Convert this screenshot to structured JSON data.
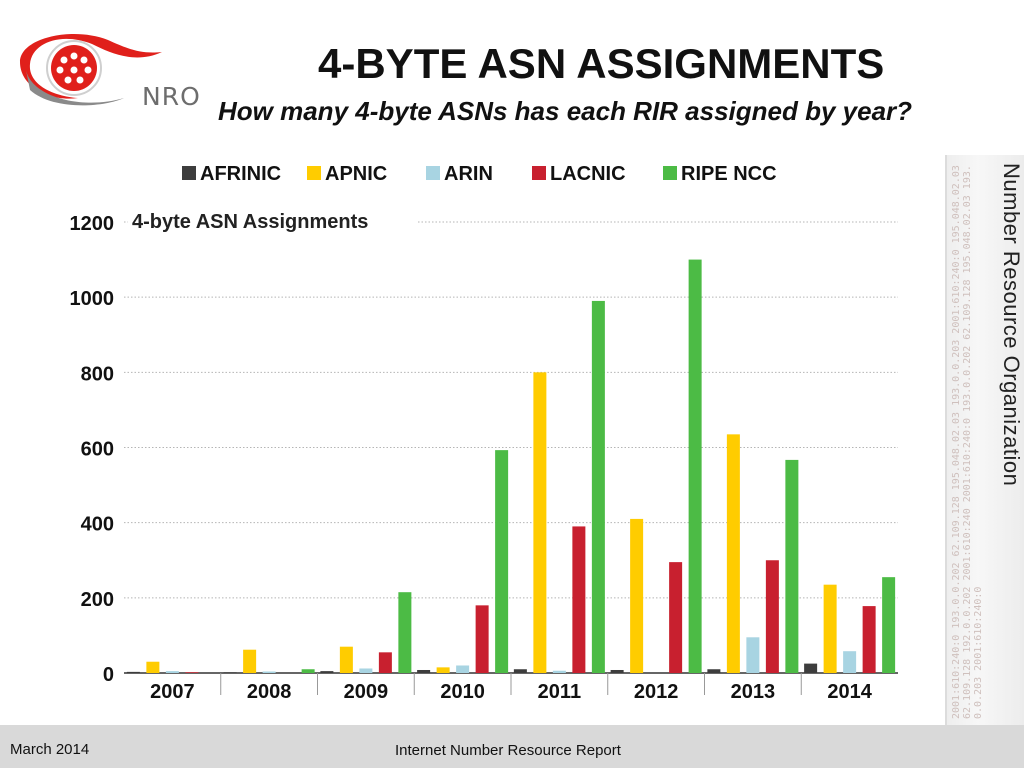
{
  "header": {
    "logo_text": "NRO",
    "title": "4-BYTE ASN ASSIGNMENTS",
    "subtitle": "How many 4-byte ASNs has each RIR assigned by year?"
  },
  "sidebar": {
    "org_name": "Number Resource Organization",
    "ip_text": "2001:610:240:0 193.0.0.202 62.109.128 195.048.02.03 193.0.0.203 2001:610:240:0 195.048.02.03 62.109.128 192.0.0.202 2001:610:240 2001:610:240:0 193.0.0.202 62.109.128 195.048.02.03 193.0.0.203 2001:610:240:0"
  },
  "footer": {
    "date": "March 2014",
    "report": "Internet Number Resource Report"
  },
  "colors": {
    "AFRINIC": "#3d3d3d",
    "APNIC": "#ffcc00",
    "ARIN": "#a8d4e2",
    "LACNIC": "#c8202f",
    "RIPE NCC": "#4cbb45",
    "logo_red": "#e0201b"
  },
  "chart_data": {
    "type": "bar",
    "title": "4-byte ASN Assignments",
    "xlabel": "",
    "ylabel": "",
    "ylim": [
      0,
      1200
    ],
    "yticks": [
      "0",
      "200",
      "400",
      "600",
      "800",
      "1000",
      "1200"
    ],
    "grid": true,
    "legend_position": "top",
    "categories": [
      "2007",
      "2008",
      "2009",
      "2010",
      "2011",
      "2012",
      "2013",
      "2014"
    ],
    "series": [
      {
        "name": "AFRINIC",
        "values": [
          3,
          2,
          5,
          8,
          10,
          8,
          10,
          25
        ]
      },
      {
        "name": "APNIC",
        "values": [
          30,
          62,
          70,
          15,
          800,
          410,
          635,
          235
        ]
      },
      {
        "name": "ARIN",
        "values": [
          5,
          4,
          12,
          20,
          6,
          0,
          95,
          58
        ]
      },
      {
        "name": "LACNIC",
        "values": [
          2,
          0,
          55,
          180,
          390,
          295,
          300,
          178
        ]
      },
      {
        "name": "RIPE NCC",
        "values": [
          0,
          10,
          215,
          593,
          990,
          1100,
          567,
          255
        ]
      }
    ]
  }
}
